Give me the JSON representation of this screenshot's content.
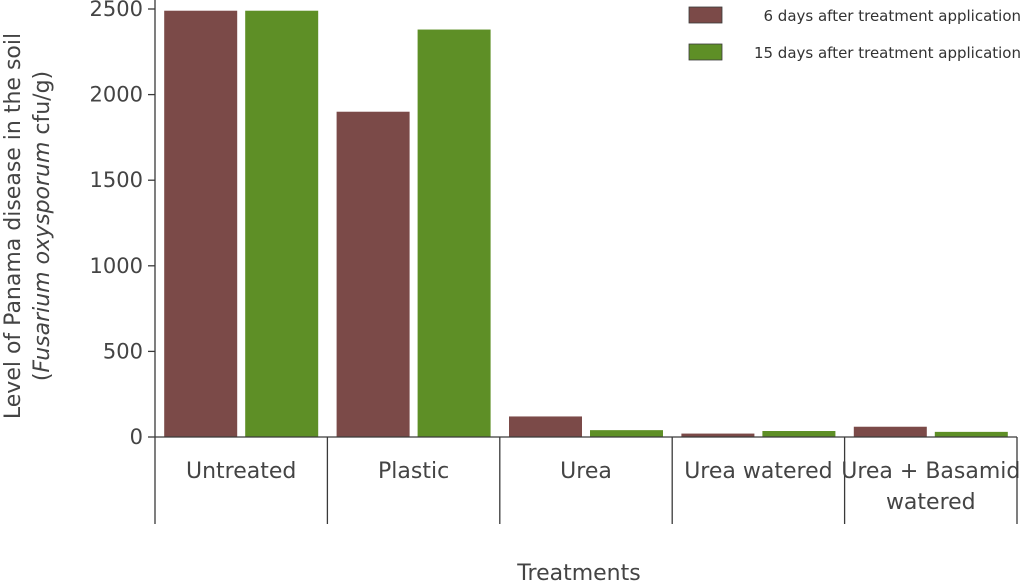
{
  "chart_data": {
    "type": "bar",
    "categories": [
      [
        "Untreated"
      ],
      [
        "Plastic"
      ],
      [
        "Urea"
      ],
      [
        "Urea watered"
      ],
      [
        "Urea + Basamid",
        "watered"
      ]
    ],
    "series": [
      {
        "name": "6 days after treatment application",
        "color": "#7b4a48",
        "values": [
          2490,
          1900,
          120,
          20,
          60
        ]
      },
      {
        "name": "15 days after treatment application",
        "color": "#5e8f26",
        "values": [
          2490,
          2380,
          40,
          35,
          30
        ]
      }
    ],
    "yticks": [
      0,
      500,
      1000,
      1500,
      2000,
      2500
    ],
    "ylim": [
      0,
      2500
    ],
    "ylabel_line1": "Level of Panama disease in the soil",
    "ylabel_line2_open": "(",
    "ylabel_line2_italic": "Fusarium oxysporum",
    "ylabel_line2_rest": " cfu/g)",
    "xlabel": "Treatments",
    "legend_position": "top-right",
    "grid": false
  }
}
